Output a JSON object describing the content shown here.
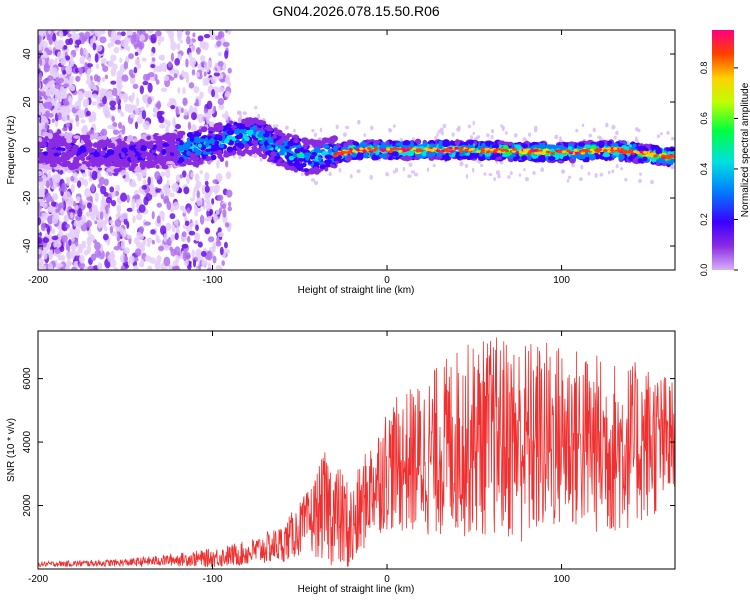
{
  "title": "GN04.2026.078.15.50.R06",
  "chart_data": [
    {
      "type": "heatmap",
      "title": "GN04.2026.078.15.50.R06",
      "xlabel": "Height of straight line (km)",
      "ylabel": "Frequency (Hz)",
      "xlim": [
        -200,
        165
      ],
      "ylim": [
        -50,
        50
      ],
      "xticks": [
        -200,
        -100,
        0,
        100
      ],
      "yticks": [
        -40,
        -20,
        0,
        20,
        40
      ],
      "colorbar": {
        "label": "Normalized spectral amplitude",
        "range": [
          0.0,
          0.95
        ],
        "ticks": [
          0.0,
          0.2,
          0.4,
          0.6,
          0.8
        ],
        "colormap": [
          "#d8b0f8",
          "#8a2be2",
          "#3a00ff",
          "#0080ff",
          "#00e0e0",
          "#00ff40",
          "#c0ff00",
          "#ffd000",
          "#ff4000",
          "#ff0080"
        ]
      },
      "ridge": [
        {
          "x": -200,
          "freq": 0
        },
        {
          "x": -150,
          "freq": -2
        },
        {
          "x": -110,
          "freq": 1
        },
        {
          "x": -90,
          "freq": 5
        },
        {
          "x": -75,
          "freq": 6
        },
        {
          "x": -60,
          "freq": 0
        },
        {
          "x": -45,
          "freq": -3
        },
        {
          "x": -30,
          "freq": -2
        },
        {
          "x": -20,
          "freq": 0
        },
        {
          "x": 0,
          "freq": 0
        },
        {
          "x": 50,
          "freq": 0
        },
        {
          "x": 100,
          "freq": -1
        },
        {
          "x": 130,
          "freq": 0
        },
        {
          "x": 165,
          "freq": -3
        }
      ]
    },
    {
      "type": "line",
      "xlabel": "Height of straight line (km)",
      "ylabel": "SNR (10 * v/v)",
      "xlim": [
        -200,
        165
      ],
      "ylim": [
        0,
        7500
      ],
      "xticks": [
        -200,
        -100,
        0,
        100
      ],
      "yticks": [
        2000,
        4000,
        6000
      ],
      "series": [
        {
          "name": "SNR",
          "color": "#f03030",
          "envelope": [
            {
              "x": -200,
              "mean": 150,
              "spread": 80
            },
            {
              "x": -150,
              "mean": 200,
              "spread": 120
            },
            {
              "x": -120,
              "mean": 300,
              "spread": 200
            },
            {
              "x": -100,
              "mean": 350,
              "spread": 300
            },
            {
              "x": -80,
              "mean": 500,
              "spread": 400
            },
            {
              "x": -60,
              "mean": 800,
              "spread": 600
            },
            {
              "x": -45,
              "mean": 1500,
              "spread": 1000
            },
            {
              "x": -35,
              "mean": 2000,
              "spread": 1800
            },
            {
              "x": -20,
              "mean": 1200,
              "spread": 1500
            },
            {
              "x": -10,
              "mean": 2500,
              "spread": 1500
            },
            {
              "x": 0,
              "mean": 3200,
              "spread": 2000
            },
            {
              "x": 20,
              "mean": 3500,
              "spread": 2500
            },
            {
              "x": 40,
              "mean": 4000,
              "spread": 3000
            },
            {
              "x": 60,
              "mean": 4200,
              "spread": 3200
            },
            {
              "x": 80,
              "mean": 4000,
              "spread": 3300
            },
            {
              "x": 100,
              "mean": 4200,
              "spread": 3000
            },
            {
              "x": 130,
              "mean": 3800,
              "spread": 2800
            },
            {
              "x": 150,
              "mean": 4000,
              "spread": 2500
            },
            {
              "x": 165,
              "mean": 4000,
              "spread": 2000
            }
          ]
        }
      ]
    }
  ]
}
